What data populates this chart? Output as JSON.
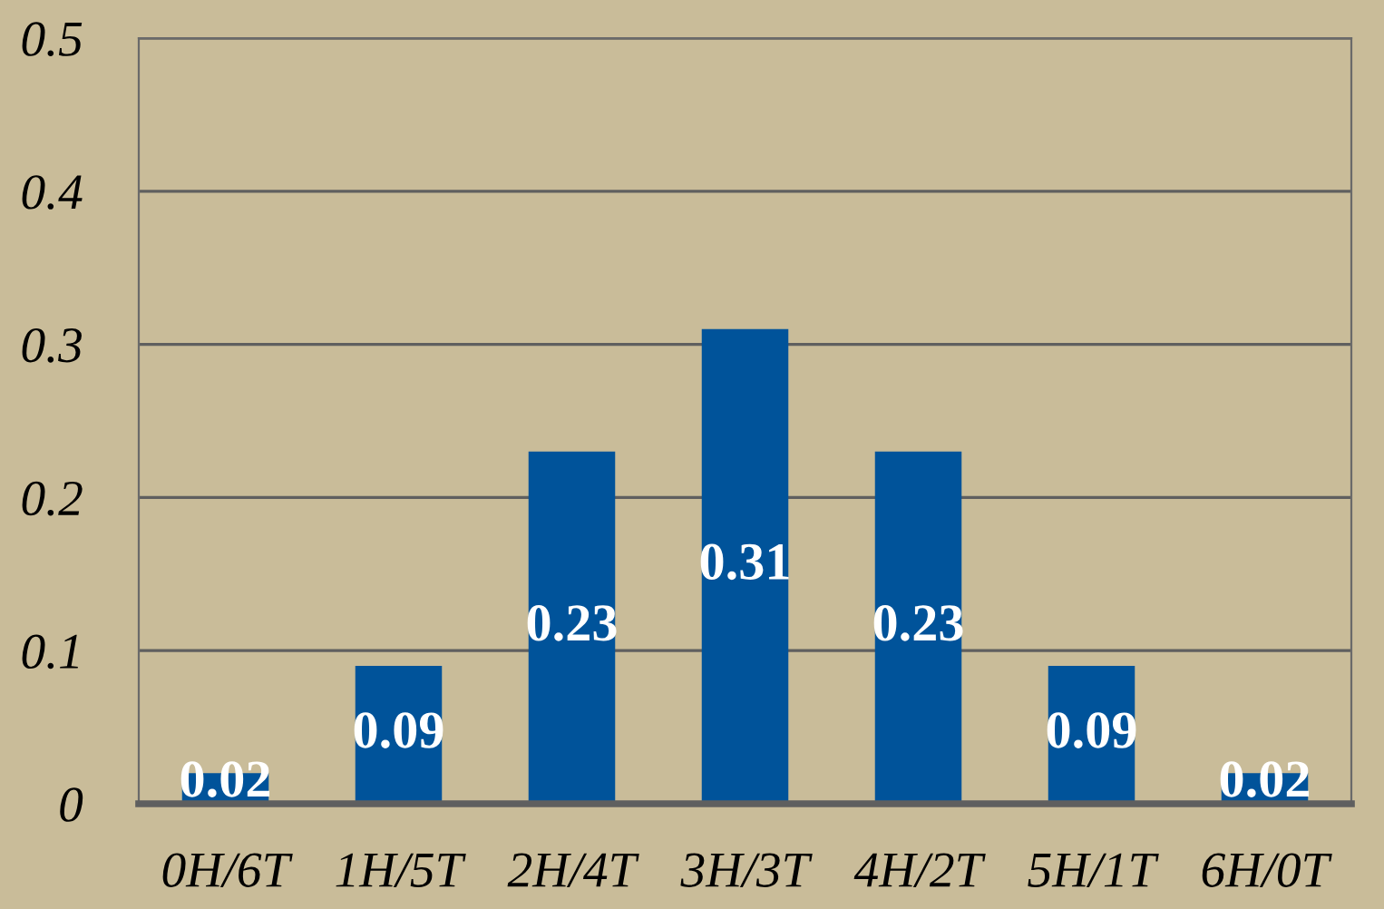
{
  "chart_data": {
    "type": "bar",
    "categories": [
      "0H/6T",
      "1H/5T",
      "2H/4T",
      "3H/3T",
      "4H/2T",
      "5H/1T",
      "6H/0T"
    ],
    "values": [
      0.02,
      0.09,
      0.23,
      0.31,
      0.23,
      0.09,
      0.02
    ],
    "color": "#00539a",
    "ylim": [
      0,
      0.5
    ],
    "yticks": [
      0,
      0.1,
      0.2,
      0.3,
      0.4,
      0.5
    ],
    "grid": "y",
    "data_labels": true
  }
}
